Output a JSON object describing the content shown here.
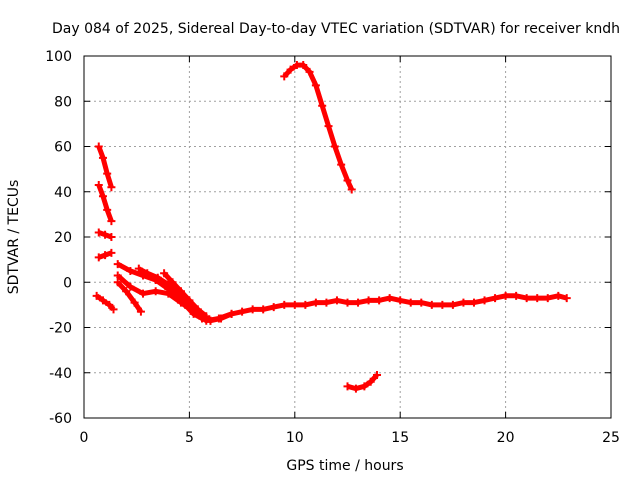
{
  "chart_data": {
    "type": "scatter",
    "title": "Day 084 of 2025, Sidereal Day-to-day VTEC variation (SDTVAR) for receiver kndh",
    "xlabel": "GPS time / hours",
    "ylabel": "SDTVAR / TECUs",
    "xlim": [
      0,
      25
    ],
    "ylim": [
      -60,
      100
    ],
    "xticks": [
      0,
      5,
      10,
      15,
      20,
      25
    ],
    "yticks": [
      -60,
      -40,
      -20,
      0,
      20,
      40,
      60,
      80,
      100
    ],
    "grid": true,
    "color": "#ff0000",
    "series": [
      {
        "name": "arc-main",
        "x": [
          4.8,
          5.2,
          5.6,
          6.0,
          6.5,
          7.0,
          7.5,
          8.0,
          8.5,
          9.0,
          9.5,
          10.0,
          10.5,
          11.0,
          11.5,
          12.0,
          12.5,
          13.0,
          13.5,
          14.0,
          14.5,
          15.0,
          15.5,
          16.0,
          16.5,
          17.0,
          17.5,
          18.0,
          18.5,
          19.0,
          19.5,
          20.0,
          20.5,
          21.0,
          21.5,
          22.0,
          22.5,
          22.9
        ],
        "y": [
          -10,
          -14,
          -16,
          -17,
          -16,
          -14,
          -13,
          -12,
          -12,
          -11,
          -10,
          -10,
          -10,
          -9,
          -9,
          -8,
          -9,
          -9,
          -8,
          -8,
          -7,
          -8,
          -9,
          -9,
          -10,
          -10,
          -10,
          -9,
          -9,
          -8,
          -7,
          -6,
          -6,
          -7,
          -7,
          -7,
          -6,
          -7
        ]
      },
      {
        "name": "arc-high",
        "x": [
          9.5,
          9.8,
          10.1,
          10.4,
          10.7,
          11.0,
          11.3,
          11.6,
          11.9,
          12.2,
          12.5,
          12.7
        ],
        "y": [
          91,
          94,
          96,
          96,
          93,
          87,
          78,
          69,
          60,
          52,
          45,
          41
        ]
      },
      {
        "name": "arc-low",
        "x": [
          12.5,
          12.9,
          13.3,
          13.6,
          13.9
        ],
        "y": [
          -46,
          -47,
          -46,
          -44,
          -41
        ]
      },
      {
        "name": "arc-a",
        "x": [
          0.7,
          0.9,
          1.1,
          1.3
        ],
        "y": [
          60,
          55,
          48,
          42
        ]
      },
      {
        "name": "arc-b",
        "x": [
          0.7,
          0.9,
          1.1,
          1.3
        ],
        "y": [
          43,
          38,
          32,
          27
        ]
      },
      {
        "name": "arc-c",
        "x": [
          0.7,
          1.0,
          1.3
        ],
        "y": [
          22,
          21,
          20
        ]
      },
      {
        "name": "arc-d",
        "x": [
          0.7,
          1.0,
          1.3
        ],
        "y": [
          11,
          12,
          13
        ]
      },
      {
        "name": "arc-e",
        "x": [
          0.6,
          0.9,
          1.2,
          1.4
        ],
        "y": [
          -6,
          -8,
          -10,
          -12
        ]
      },
      {
        "name": "arc-f",
        "x": [
          1.6,
          2.2,
          2.8,
          3.4,
          4.0,
          4.6,
          5.2,
          5.8,
          6.4,
          7.0
        ],
        "y": [
          8,
          5,
          3,
          1,
          -3,
          -8,
          -13,
          -17,
          -16,
          -14
        ]
      },
      {
        "name": "arc-g",
        "x": [
          1.6,
          2.0,
          2.4,
          2.7
        ],
        "y": [
          0,
          -4,
          -9,
          -13
        ]
      },
      {
        "name": "arc-h",
        "x": [
          1.6,
          2.2,
          2.8,
          3.4,
          4.0,
          4.6,
          5.2,
          5.6
        ],
        "y": [
          3,
          -2,
          -5,
          -4,
          -5,
          -9,
          -13,
          -16
        ]
      },
      {
        "name": "arc-i",
        "x": [
          2.6,
          3.0,
          3.5,
          4.0,
          4.5,
          5.0,
          5.5,
          6.0
        ],
        "y": [
          6,
          4,
          2,
          -1,
          -5,
          -10,
          -14,
          -17
        ]
      },
      {
        "name": "arc-j",
        "x": [
          3.8,
          4.2,
          4.6,
          5.0,
          5.4,
          5.8
        ],
        "y": [
          4,
          0,
          -4,
          -8,
          -12,
          -15
        ]
      }
    ]
  }
}
